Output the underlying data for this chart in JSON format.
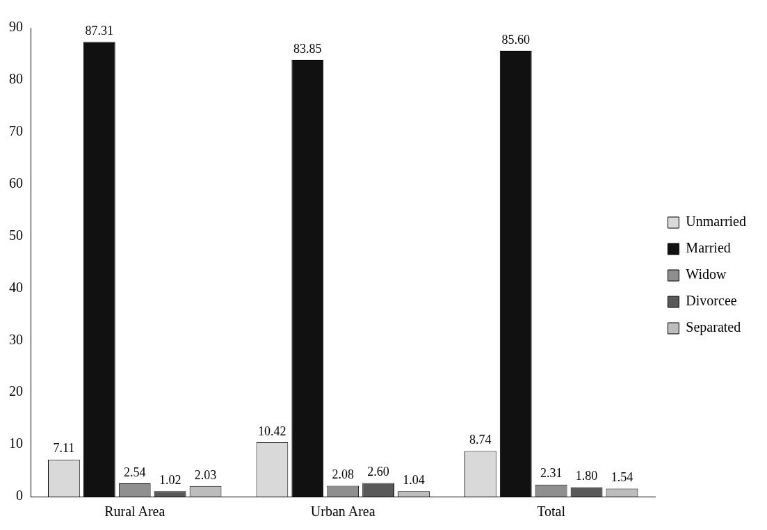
{
  "chart_data": {
    "type": "bar",
    "categories": [
      "Rural Area",
      "Urban Area",
      "Total"
    ],
    "series": [
      {
        "name": "Unmarried",
        "color": "#d9d9d9",
        "values": [
          7.11,
          10.42,
          8.74
        ],
        "value_labels": [
          "7.11",
          "10.42",
          "8.74"
        ]
      },
      {
        "name": "Married",
        "color": "#111111",
        "values": [
          87.31,
          83.85,
          85.6
        ],
        "value_labels": [
          "87.31",
          "83.85",
          "85.60"
        ]
      },
      {
        "name": "Widow",
        "color": "#8f8f8f",
        "values": [
          2.54,
          2.08,
          2.31
        ],
        "value_labels": [
          "2.54",
          "2.08",
          "2.31"
        ]
      },
      {
        "name": "Divorcee",
        "color": "#595959",
        "values": [
          1.02,
          2.6,
          1.8
        ],
        "value_labels": [
          "1.02",
          "2.60",
          "1.80"
        ]
      },
      {
        "name": "Separated",
        "color": "#bcbcbc",
        "values": [
          2.03,
          1.04,
          1.54
        ],
        "value_labels": [
          "2.03",
          "1.04",
          "1.54"
        ]
      }
    ],
    "ylim": [
      0,
      90
    ],
    "yticks": [
      0,
      10,
      20,
      30,
      40,
      50,
      60,
      70,
      80,
      90
    ],
    "grid": false,
    "legend": "right"
  }
}
